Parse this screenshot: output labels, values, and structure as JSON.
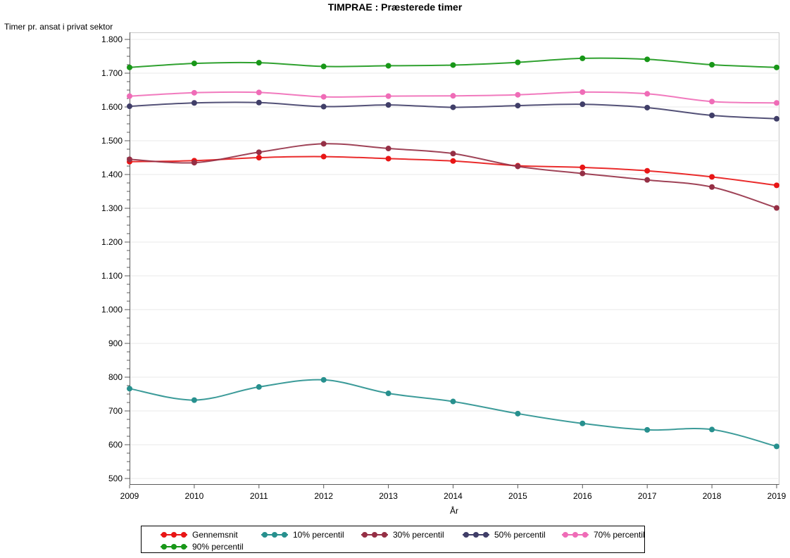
{
  "title": "TIMPRAE : Præsterede timer",
  "chart_data": {
    "type": "line",
    "title": "TIMPRAE : Præsterede timer",
    "ylabel": "Timer pr. ansat i privat sektor",
    "xlabel": "År",
    "categories": [
      2009,
      2010,
      2011,
      2012,
      2013,
      2014,
      2015,
      2016,
      2017,
      2018,
      2019
    ],
    "x_tick_labels": [
      "2009",
      "2010",
      "2011",
      "2012",
      "2013",
      "2014",
      "2015",
      "2016",
      "2017",
      "2018",
      "2019"
    ],
    "y_axis": {
      "ticks": [
        {
          "value": 1800,
          "label": "1.800"
        },
        {
          "value": 1700,
          "label": "1.700"
        },
        {
          "value": 1600,
          "label": "1.600"
        },
        {
          "value": 1500,
          "label": "1.500"
        },
        {
          "value": 1400,
          "label": "1.400"
        },
        {
          "value": 1300,
          "label": "1.300"
        },
        {
          "value": 1200,
          "label": "1.200"
        },
        {
          "value": 1100,
          "label": "1.100"
        },
        {
          "value": 1000,
          "label": "1.000"
        },
        {
          "value": 900,
          "label": "900"
        },
        {
          "value": 800,
          "label": "800"
        },
        {
          "value": 700,
          "label": "700"
        },
        {
          "value": 600,
          "label": "600"
        },
        {
          "value": 500,
          "label": "500"
        }
      ],
      "minor_tick_step": 25,
      "ylim": [
        480,
        1820
      ],
      "grid": true
    },
    "series": [
      {
        "name": "Gennemsnit",
        "color": "#e81515",
        "values": [
          1438,
          1441,
          1450,
          1453,
          1447,
          1440,
          1426,
          1421,
          1411,
          1393,
          1368
        ]
      },
      {
        "name": "10% percentil",
        "color": "#27908e",
        "values": [
          766,
          732,
          771,
          792,
          752,
          728,
          692,
          663,
          644,
          645,
          595
        ]
      },
      {
        "name": "30% percentil",
        "color": "#952f45",
        "values": [
          1445,
          1435,
          1466,
          1491,
          1477,
          1462,
          1424,
          1403,
          1384,
          1363,
          1301
        ]
      },
      {
        "name": "50% percentil",
        "color": "#403e68",
        "values": [
          1602,
          1612,
          1613,
          1601,
          1606,
          1599,
          1604,
          1608,
          1598,
          1575,
          1565
        ]
      },
      {
        "name": "70% percentil",
        "color": "#ef6cb7",
        "values": [
          1632,
          1642,
          1643,
          1630,
          1632,
          1633,
          1636,
          1644,
          1639,
          1616,
          1612
        ]
      },
      {
        "name": "90% percentil",
        "color": "#189718",
        "values": [
          1717,
          1729,
          1731,
          1720,
          1722,
          1724,
          1732,
          1744,
          1741,
          1725,
          1717
        ]
      }
    ],
    "legend": {
      "position": "bottom",
      "border": true,
      "row1": [
        "Gennemsnit",
        "10% percentil",
        "30% percentil",
        "50% percentil",
        "70% percentil"
      ],
      "row2": [
        "90% percentil"
      ]
    },
    "colors": {
      "grid": "#e9e9e9",
      "frame": "#c9c9c9",
      "axis": "#5a5a5a",
      "text": "#000000",
      "background": "#ffffff"
    }
  }
}
